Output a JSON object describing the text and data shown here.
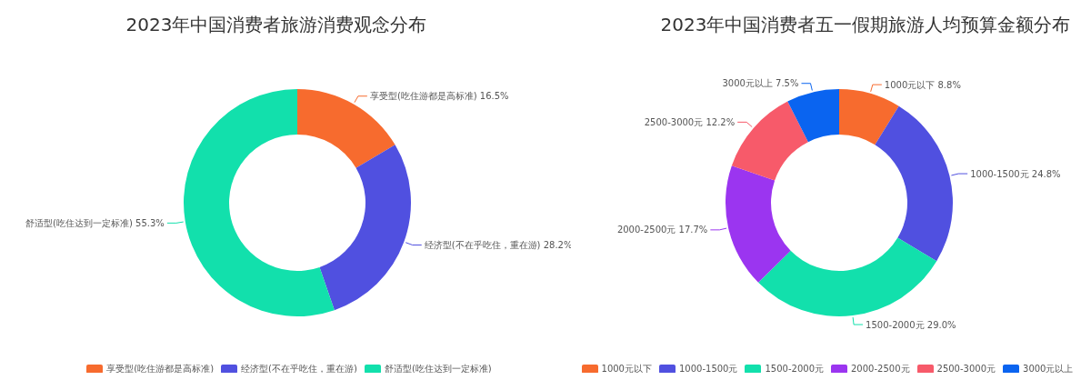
{
  "chart_data": [
    {
      "type": "donut",
      "title": "2023年中国消费者旅游消费观念分布",
      "categories": [
        "享受型(吃住游都是高标准)",
        "经济型(不在乎吃住，重在游)",
        "舒适型(吃住达到一定标准)"
      ],
      "values": [
        16.5,
        28.2,
        55.3
      ],
      "value_labels": [
        "16.5%",
        "28.2%",
        "55.3%"
      ],
      "colors": [
        "#f76b2e",
        "#5050e0",
        "#12e0ac"
      ],
      "legend": "bottom"
    },
    {
      "type": "donut",
      "title": "2023年中国消费者五一假期旅游人均预算金额分布",
      "categories": [
        "1000元以下",
        "1000-1500元",
        "1500-2000元",
        "2000-2500元",
        "2500-3000元",
        "3000元以上"
      ],
      "values": [
        8.8,
        24.8,
        29.0,
        17.7,
        12.2,
        7.5
      ],
      "value_labels": [
        "8.8%",
        "24.8%",
        "29.0%",
        "17.7%",
        "12.2%",
        "7.5%"
      ],
      "colors": [
        "#f76b2e",
        "#5050e0",
        "#12e0ac",
        "#9b35f0",
        "#f75a6a",
        "#0a64f0"
      ],
      "legend": "bottom"
    }
  ]
}
